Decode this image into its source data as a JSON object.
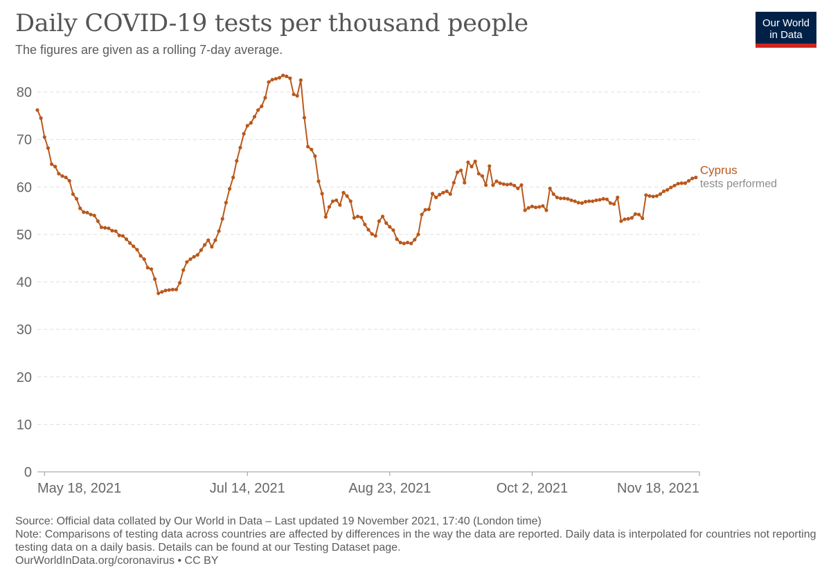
{
  "header": {
    "title": "Daily COVID-19 tests per thousand people",
    "subtitle": "The figures are given as a rolling 7-day average.",
    "logo_line1": "Our World",
    "logo_line2": "in Data"
  },
  "chart_data": {
    "type": "line",
    "title": "Daily COVID-19 tests per thousand people",
    "xlabel": "",
    "ylabel": "",
    "ylim": [
      0,
      80
    ],
    "yticks": [
      0,
      10,
      20,
      30,
      40,
      50,
      60,
      70,
      80
    ],
    "grid": true,
    "x_range": [
      "2021-05-16",
      "2021-11-18"
    ],
    "x_tick_labels": [
      {
        "date": "2021-05-18",
        "label": "May 18, 2021"
      },
      {
        "date": "2021-07-14",
        "label": "Jul 14, 2021"
      },
      {
        "date": "2021-08-23",
        "label": "Aug 23, 2021"
      },
      {
        "date": "2021-10-02",
        "label": "Oct 2, 2021"
      },
      {
        "date": "2021-11-18",
        "label": "Nov 18, 2021"
      }
    ],
    "series": [
      {
        "name": "Cyprus",
        "sublabel": "tests performed",
        "color": "#b9581c",
        "start_date": "2021-05-16",
        "values": [
          76.2,
          74.5,
          70.5,
          68.2,
          64.8,
          64.3,
          62.8,
          62.3,
          62.0,
          61.3,
          58.5,
          57.5,
          55.5,
          54.7,
          54.6,
          54.2,
          54.0,
          52.8,
          51.5,
          51.4,
          51.3,
          50.8,
          50.7,
          49.8,
          49.7,
          49.0,
          48.2,
          47.5,
          46.8,
          45.5,
          44.8,
          43.0,
          42.7,
          40.6,
          37.6,
          37.9,
          38.2,
          38.3,
          38.4,
          38.4,
          39.8,
          42.5,
          44.2,
          44.8,
          45.3,
          45.7,
          46.7,
          47.8,
          48.8,
          47.4,
          48.8,
          50.7,
          53.3,
          56.7,
          59.6,
          62.0,
          65.5,
          68.3,
          71.2,
          72.9,
          73.5,
          74.8,
          76.2,
          77.0,
          78.8,
          82.1,
          82.6,
          82.8,
          83.0,
          83.5,
          83.3,
          82.9,
          79.5,
          79.2,
          82.5,
          74.6,
          68.5,
          67.9,
          66.5,
          61.2,
          58.6,
          53.7,
          55.8,
          57.0,
          57.2,
          56.2,
          58.8,
          58.1,
          57.0,
          53.5,
          53.8,
          53.6,
          52.1,
          51.0,
          50.1,
          49.7,
          52.8,
          53.8,
          52.4,
          51.6,
          50.9,
          49.0,
          48.3,
          48.1,
          48.3,
          48.1,
          48.9,
          50.0,
          54.2,
          55.2,
          55.3,
          58.6,
          57.8,
          58.4,
          58.8,
          59.1,
          58.5,
          60.9,
          63.1,
          63.5,
          60.9,
          65.2,
          64.3,
          65.4,
          62.8,
          62.3,
          60.4,
          64.4,
          60.4,
          61.2,
          60.8,
          60.6,
          60.5,
          60.6,
          60.3,
          59.7,
          60.4,
          55.1,
          55.6,
          55.9,
          55.7,
          55.8,
          56.0,
          55.1,
          59.7,
          58.5,
          57.8,
          57.6,
          57.6,
          57.5,
          57.2,
          57.0,
          56.7,
          56.6,
          56.9,
          57.0,
          57.0,
          57.2,
          57.3,
          57.5,
          57.4,
          56.6,
          56.4,
          57.8,
          52.8,
          53.2,
          53.3,
          53.5,
          54.3,
          54.2,
          53.4,
          58.3,
          58.1,
          58.0,
          58.1,
          58.5,
          59.1,
          59.4,
          59.9,
          60.3,
          60.7,
          60.8,
          60.8,
          61.3,
          61.8,
          62.0
        ]
      }
    ]
  },
  "footer": {
    "source": "Source: Official data collated by Our World in Data – Last updated 19 November 2021, 17:40 (London time)",
    "note": "Note: Comparisons of testing data across countries are affected by differences in the way the data are reported. Daily data is interpolated for countries not reporting testing data on a daily basis. Details can be found at our Testing Dataset page.",
    "url": "OurWorldInData.org/coronavirus • CC BY"
  }
}
